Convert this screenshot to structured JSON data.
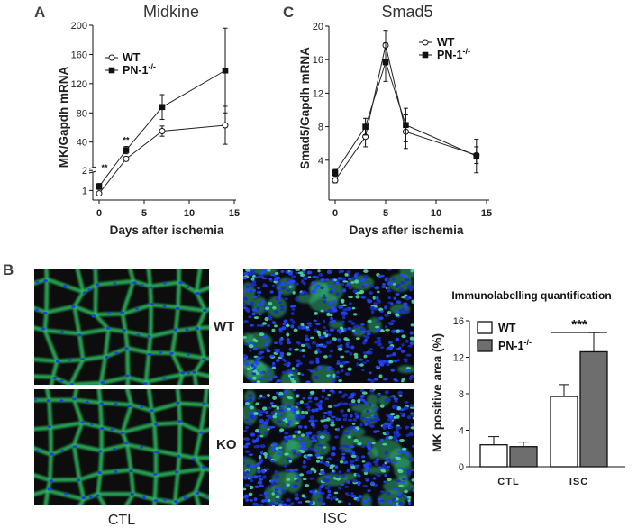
{
  "panels": {
    "a": "A",
    "c": "C",
    "b": "B"
  },
  "colors": {
    "wt_bar": "#ffffff",
    "ko_bar": "#6e6e6e",
    "tissue_bg": "#0a0a0a",
    "membrane_green": "#33c46a",
    "nuclei_blue": "#1f3fe0"
  },
  "microscopy": {
    "row_labels": [
      "WT",
      "KO"
    ],
    "column_labels": [
      "CTL",
      "ISC"
    ]
  },
  "chart_data": [
    {
      "id": "midkine",
      "type": "line",
      "title": "Midkine",
      "xlabel": "Days after ischemia",
      "ylabel": "MK/Gapdh mRNA",
      "x": [
        0,
        3,
        7,
        14
      ],
      "xticks": [
        "0",
        "5",
        "10",
        "15"
      ],
      "xlim": [
        0,
        15
      ],
      "yticks_lower": [
        "1",
        "2"
      ],
      "yticks_upper": [
        "40",
        "80",
        "120",
        "160",
        "200"
      ],
      "axis_break": true,
      "series": [
        {
          "name": "WT",
          "marker": "open-circle",
          "values": [
            0.85,
            17,
            55,
            63
          ],
          "error": [
            0.1,
            3,
            7,
            26
          ]
        },
        {
          "name": "PN-1",
          "marker": "filled-square",
          "values": [
            1.2,
            29,
            88,
            138
          ],
          "error": [
            0.15,
            5,
            17,
            58
          ]
        }
      ],
      "legend": [
        {
          "name": "WT",
          "sup": ""
        },
        {
          "name": "PN-1",
          "sup": "-/-"
        }
      ],
      "legend_position": "top-left",
      "annotations": [
        {
          "text": "**",
          "x": 3
        },
        {
          "text": "**",
          "x": 0
        }
      ]
    },
    {
      "id": "smad5",
      "type": "line",
      "title": "Smad5",
      "xlabel": "Days after ischemia",
      "ylabel": "Smad5/Gapdh mRNA",
      "x": [
        0,
        3,
        5,
        7,
        14
      ],
      "xticks": [
        "0",
        "5",
        "10",
        "15"
      ],
      "xlim": [
        0,
        15
      ],
      "ylim": [
        0,
        20
      ],
      "yticks": [
        "0",
        "4",
        "8",
        "12",
        "16",
        "20"
      ],
      "series": [
        {
          "name": "WT",
          "marker": "open-circle",
          "values": [
            1.6,
            6.8,
            17.7,
            7.4,
            4.6
          ],
          "error": [
            0.3,
            1.2,
            1.8,
            2.0,
            1.0
          ]
        },
        {
          "name": "PN-1",
          "marker": "filled-square",
          "values": [
            2.5,
            8.0,
            15.7,
            8.2,
            4.5
          ],
          "error": [
            0.4,
            1.0,
            2.3,
            2.0,
            2.0
          ]
        }
      ],
      "legend": [
        {
          "name": "WT",
          "sup": ""
        },
        {
          "name": "PN-1",
          "sup": "-/-"
        }
      ],
      "legend_position": "top-right"
    },
    {
      "id": "quant",
      "type": "bar",
      "title": "Immunolabelling quantification",
      "ylabel": "MK positive area (%)",
      "categories": [
        "CTL",
        "ISC"
      ],
      "ylim": [
        0,
        16
      ],
      "yticks": [
        "0",
        "4",
        "8",
        "12",
        "16"
      ],
      "series": [
        {
          "name": "WT",
          "values": [
            2.4,
            7.7
          ],
          "error": [
            0.9,
            1.3
          ]
        },
        {
          "name": "PN-1",
          "values": [
            2.2,
            12.6
          ],
          "error": [
            0.5,
            2.1
          ]
        }
      ],
      "legend": [
        {
          "name": "WT",
          "sup": ""
        },
        {
          "name": "PN-1",
          "sup": "-/-"
        }
      ],
      "legend_position": "top-left",
      "annotations": [
        {
          "text": "***",
          "category": "ISC"
        }
      ]
    }
  ]
}
